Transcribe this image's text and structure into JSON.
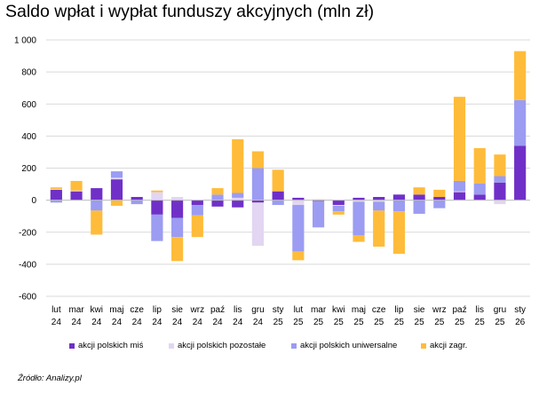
{
  "title": "Saldo wpłat i wypłat funduszy akcyjnych (mln zł)",
  "source": "Źródło: Analizy.pl",
  "chart_data": {
    "type": "bar",
    "stacked": true,
    "title": "Saldo wpłat i wypłat funduszy akcyjnych (mln zł)",
    "xlabel": "",
    "ylabel": "",
    "ylim": [
      -600,
      1000
    ],
    "yticks": [
      "-600",
      "-400",
      "-200",
      "0",
      "200",
      "400",
      "600",
      "800",
      "1 000"
    ],
    "grid": true,
    "legend_position": "bottom",
    "categories": [
      [
        "lut",
        "24"
      ],
      [
        "mar",
        "24"
      ],
      [
        "kwi",
        "24"
      ],
      [
        "maj",
        "24"
      ],
      [
        "cze",
        "24"
      ],
      [
        "lip",
        "24"
      ],
      [
        "sie",
        "24"
      ],
      [
        "wrz",
        "24"
      ],
      [
        "paź",
        "24"
      ],
      [
        "lis",
        "24"
      ],
      [
        "gru",
        "24"
      ],
      [
        "sty",
        "25"
      ],
      [
        "lut",
        "25"
      ],
      [
        "mar",
        "25"
      ],
      [
        "kwi",
        "25"
      ],
      [
        "maj",
        "25"
      ],
      [
        "cze",
        "25"
      ],
      [
        "lip",
        "25"
      ],
      [
        "sie",
        "25"
      ],
      [
        "wrz",
        "25"
      ],
      [
        "paź",
        "25"
      ],
      [
        "lis",
        "25"
      ],
      [
        "gru",
        "25"
      ],
      [
        "sty",
        "26"
      ]
    ],
    "series": [
      {
        "name": "akcji polskich miś",
        "color": "#7030c8",
        "values": [
          65,
          55,
          75,
          130,
          20,
          -90,
          -110,
          -30,
          -40,
          -45,
          -15,
          55,
          15,
          -5,
          -30,
          15,
          20,
          35,
          35,
          20,
          50,
          35,
          110,
          340
        ]
      },
      {
        "name": "akcji polskich pozostałe",
        "color": "#e2d6f2",
        "values": [
          5,
          5,
          0,
          10,
          0,
          50,
          20,
          0,
          0,
          15,
          -270,
          0,
          -30,
          0,
          -5,
          -10,
          -10,
          0,
          0,
          0,
          5,
          0,
          -25,
          0
        ]
      },
      {
        "name": "akcji polskich uniwersalne",
        "color": "#9b9cf2",
        "values": [
          -15,
          0,
          -65,
          40,
          -25,
          -165,
          -120,
          -65,
          35,
          30,
          200,
          -30,
          -290,
          -165,
          -35,
          -210,
          -55,
          -70,
          -85,
          -50,
          65,
          70,
          40,
          285
        ]
      },
      {
        "name": "akcji zagr.",
        "color": "#ffbc3a",
        "values": [
          10,
          60,
          -150,
          -35,
          0,
          10,
          -150,
          -135,
          40,
          335,
          105,
          135,
          -55,
          5,
          -20,
          -40,
          -225,
          -265,
          45,
          45,
          525,
          220,
          135,
          305
        ]
      }
    ]
  }
}
